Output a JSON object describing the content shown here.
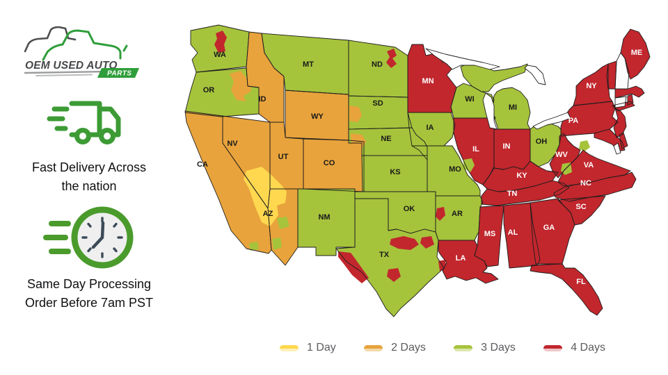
{
  "logo": {
    "line1": "OEM USED AUTO",
    "badge": "PARTS"
  },
  "features": [
    {
      "icon": "delivery-truck",
      "text_lines": [
        "Fast Delivery Across",
        "the nation"
      ]
    },
    {
      "icon": "fast-clock",
      "text_lines": [
        "Same Day Processing",
        "Order Before 7am PST"
      ]
    }
  ],
  "legend": [
    {
      "label": "1 Day",
      "color": "#ffd84f",
      "tint": "#fff0b8"
    },
    {
      "label": "2 Days",
      "color": "#e8a33c",
      "tint": "#f4d9a9"
    },
    {
      "label": "3 Days",
      "color": "#a6c33c",
      "tint": "#dbe7ab"
    },
    {
      "label": "4 Days",
      "color": "#c1272d",
      "tint": "#efc6c8"
    }
  ],
  "map": {
    "border_color": "#1c1c1c",
    "no_data_color": "#fcfcfc",
    "water_color": "#ffffff",
    "states": [
      {
        "id": "WA",
        "label": "WA",
        "days": 3
      },
      {
        "id": "OR",
        "label": "OR",
        "days": 3
      },
      {
        "id": "CA",
        "label": "CA",
        "days": 2
      },
      {
        "id": "NV",
        "label": "NV",
        "days": 2
      },
      {
        "id": "ID",
        "label": "ID",
        "days": 2
      },
      {
        "id": "MT",
        "label": "MT",
        "days": 3
      },
      {
        "id": "WY",
        "label": "WY",
        "days": 2
      },
      {
        "id": "UT",
        "label": "UT",
        "days": 2
      },
      {
        "id": "CO",
        "label": "CO",
        "days": 2
      },
      {
        "id": "AZ",
        "label": "AZ",
        "days": 2
      },
      {
        "id": "NM",
        "label": "NM",
        "days": 3
      },
      {
        "id": "ND",
        "label": "ND",
        "days": 3
      },
      {
        "id": "SD",
        "label": "SD",
        "days": 3
      },
      {
        "id": "NE",
        "label": "NE",
        "days": 3
      },
      {
        "id": "KS",
        "label": "KS",
        "days": 3
      },
      {
        "id": "OK",
        "label": "OK",
        "days": 3
      },
      {
        "id": "TX",
        "label": "TX",
        "days": 3
      },
      {
        "id": "MN",
        "label": "MN",
        "days": 4
      },
      {
        "id": "IA",
        "label": "IA",
        "days": 3
      },
      {
        "id": "MO",
        "label": "MO",
        "days": 3
      },
      {
        "id": "AR",
        "label": "AR",
        "days": 3
      },
      {
        "id": "LA",
        "label": "LA",
        "days": 4
      },
      {
        "id": "WI",
        "label": "WI",
        "days": 3
      },
      {
        "id": "MI",
        "label": "MI",
        "days": 3
      },
      {
        "id": "IL",
        "label": "IL",
        "days": 4
      },
      {
        "id": "IN",
        "label": "IN",
        "days": 4
      },
      {
        "id": "OH",
        "label": "OH",
        "days": 3
      },
      {
        "id": "KY",
        "label": "KY",
        "days": 4
      },
      {
        "id": "TN",
        "label": "TN",
        "days": 4
      },
      {
        "id": "MS",
        "label": "MS",
        "days": 4
      },
      {
        "id": "AL",
        "label": "AL",
        "days": 4
      },
      {
        "id": "GA",
        "label": "GA",
        "days": 4
      },
      {
        "id": "FL",
        "label": "FL",
        "days": 4
      },
      {
        "id": "SC",
        "label": "SC",
        "days": 4
      },
      {
        "id": "NC",
        "label": "NC",
        "days": 4
      },
      {
        "id": "VA",
        "label": "VA",
        "days": 4
      },
      {
        "id": "WV",
        "label": "WV",
        "days": 4
      },
      {
        "id": "PA",
        "label": "PA",
        "days": 4
      },
      {
        "id": "NY",
        "label": "NY",
        "days": 4
      },
      {
        "id": "ME",
        "label": "ME",
        "days": 4
      },
      {
        "id": "VT",
        "label": null,
        "days": 4
      },
      {
        "id": "NH",
        "label": null,
        "days": null
      },
      {
        "id": "MA",
        "label": null,
        "days": 4
      },
      {
        "id": "CT",
        "label": null,
        "days": null
      },
      {
        "id": "RI",
        "label": null,
        "days": 4
      },
      {
        "id": "NJ",
        "label": null,
        "days": 4
      },
      {
        "id": "MD",
        "label": null,
        "days": 4
      },
      {
        "id": "DE",
        "label": null,
        "days": 4
      }
    ],
    "subregions": [
      {
        "id": "north-washington",
        "days": 4
      },
      {
        "id": "east-north-dakota",
        "days": 4
      },
      {
        "id": "east-oregon",
        "days": 2
      },
      {
        "id": "west-south-dakota",
        "days": 2
      },
      {
        "id": "west-nebraska",
        "days": 2
      },
      {
        "id": "las-vegas-region",
        "days": 1
      },
      {
        "id": "south-arizona-1",
        "days": 3
      },
      {
        "id": "south-arizona-2",
        "days": 3
      },
      {
        "id": "south-california",
        "days": 3
      },
      {
        "id": "st-louis-illinois",
        "days": 3
      },
      {
        "id": "west-arkansas",
        "days": 4
      },
      {
        "id": "dc-virginia",
        "days": 3
      },
      {
        "id": "southwest-virginia",
        "days": 3
      },
      {
        "id": "west-texas",
        "days": 4
      },
      {
        "id": "central-texas",
        "days": 4
      },
      {
        "id": "east-texas",
        "days": 4
      },
      {
        "id": "south-texas",
        "days": 4
      },
      {
        "id": "southeast-texas",
        "days": 4
      }
    ]
  }
}
